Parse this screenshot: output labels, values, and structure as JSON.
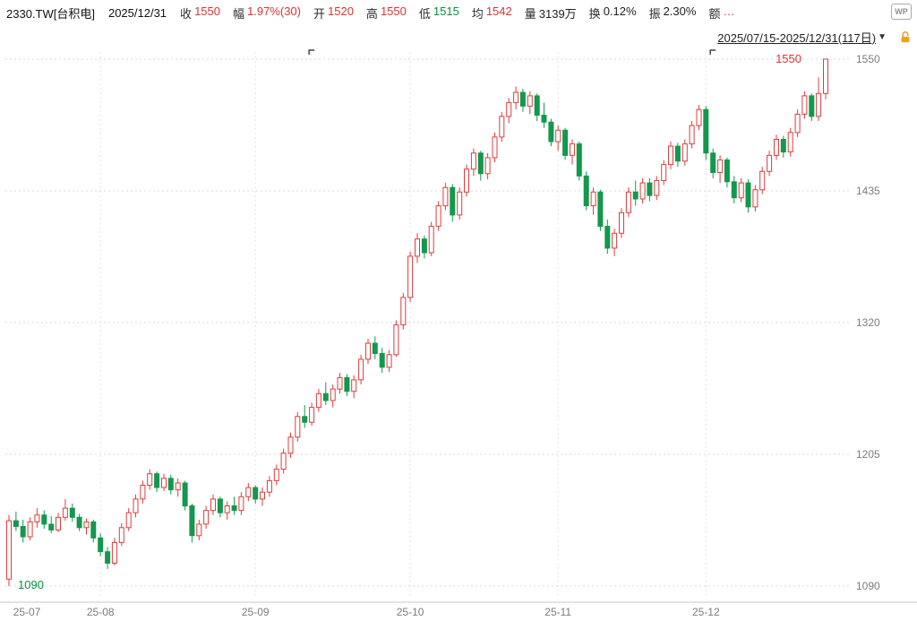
{
  "header": {
    "symbol": "2330.TW[台积电]",
    "date": "2025/12/31",
    "logo": "WP",
    "fields": [
      {
        "key": "close",
        "label": "收",
        "value": "1550",
        "color": "red"
      },
      {
        "key": "change",
        "label": "幅",
        "value": "1.97%(30)",
        "color": "red"
      },
      {
        "key": "open",
        "label": "开",
        "value": "1520",
        "color": "red"
      },
      {
        "key": "high",
        "label": "高",
        "value": "1550",
        "color": "red"
      },
      {
        "key": "low",
        "label": "低",
        "value": "1515",
        "color": "green"
      },
      {
        "key": "avg",
        "label": "均",
        "value": "1542",
        "color": "red"
      },
      {
        "key": "volume",
        "label": "量",
        "value": "3139万",
        "color": "black"
      },
      {
        "key": "turnover",
        "label": "换",
        "value": "0.12%",
        "color": "black"
      },
      {
        "key": "amplitude",
        "label": "振",
        "value": "2.30%",
        "color": "black"
      },
      {
        "key": "amount",
        "label": "额",
        "value": "…",
        "color": "red"
      }
    ]
  },
  "range_bar": {
    "range_text": "2025/07/15-2025/12/31(117日)",
    "dropdown_icon": "▼",
    "lock_color": "#f0a020"
  },
  "chart_data": {
    "type": "candlestick",
    "title": "2330.TW 台积电 日K线 2025/07/15-2025/12/31",
    "y_ticks": [
      1550,
      1435,
      1320,
      1205,
      1090
    ],
    "ylim": [
      1079,
      1559
    ],
    "x_labels": [
      "25-07",
      "25-08",
      "25-09",
      "25-10",
      "25-11",
      "25-12"
    ],
    "month_start_indices": [
      0,
      13,
      35,
      57,
      78,
      99
    ],
    "high_annotation": {
      "text": "1550",
      "day": 116,
      "value": 1550
    },
    "low_annotation": {
      "text": "1090",
      "day": 0,
      "value": 1090
    },
    "event_marker_days": [
      43,
      100
    ],
    "colors": {
      "up": "#e23b3b",
      "down": "#13984d",
      "grid": "#d8d8d8",
      "axis_text": "#7c7c7c"
    },
    "candles": [
      [
        1096,
        1152,
        1090,
        1147
      ],
      [
        1147,
        1155,
        1138,
        1142
      ],
      [
        1142,
        1148,
        1128,
        1133
      ],
      [
        1133,
        1150,
        1130,
        1146
      ],
      [
        1146,
        1158,
        1141,
        1152
      ],
      [
        1152,
        1156,
        1140,
        1144
      ],
      [
        1144,
        1151,
        1136,
        1139
      ],
      [
        1139,
        1154,
        1137,
        1150
      ],
      [
        1150,
        1166,
        1147,
        1158
      ],
      [
        1158,
        1162,
        1146,
        1150
      ],
      [
        1150,
        1153,
        1138,
        1141
      ],
      [
        1141,
        1149,
        1135,
        1146
      ],
      [
        1146,
        1148,
        1128,
        1132
      ],
      [
        1132,
        1136,
        1116,
        1120
      ],
      [
        1120,
        1124,
        1105,
        1110
      ],
      [
        1110,
        1132,
        1108,
        1128
      ],
      [
        1128,
        1145,
        1125,
        1141
      ],
      [
        1141,
        1158,
        1138,
        1154
      ],
      [
        1154,
        1170,
        1150,
        1166
      ],
      [
        1166,
        1182,
        1162,
        1178
      ],
      [
        1178,
        1192,
        1174,
        1188
      ],
      [
        1188,
        1190,
        1172,
        1176
      ],
      [
        1176,
        1188,
        1173,
        1184
      ],
      [
        1184,
        1187,
        1170,
        1174
      ],
      [
        1174,
        1184,
        1168,
        1180
      ],
      [
        1180,
        1182,
        1156,
        1160
      ],
      [
        1160,
        1162,
        1128,
        1134
      ],
      [
        1134,
        1148,
        1130,
        1144
      ],
      [
        1144,
        1160,
        1140,
        1156
      ],
      [
        1156,
        1170,
        1152,
        1166
      ],
      [
        1166,
        1168,
        1150,
        1154
      ],
      [
        1154,
        1164,
        1148,
        1160
      ],
      [
        1160,
        1168,
        1152,
        1156
      ],
      [
        1156,
        1172,
        1152,
        1168
      ],
      [
        1168,
        1180,
        1164,
        1176
      ],
      [
        1176,
        1178,
        1162,
        1166
      ],
      [
        1166,
        1176,
        1160,
        1172
      ],
      [
        1172,
        1186,
        1168,
        1182
      ],
      [
        1182,
        1196,
        1178,
        1192
      ],
      [
        1192,
        1210,
        1188,
        1206
      ],
      [
        1206,
        1224,
        1202,
        1220
      ],
      [
        1220,
        1242,
        1216,
        1238
      ],
      [
        1238,
        1248,
        1228,
        1233
      ],
      [
        1233,
        1250,
        1230,
        1246
      ],
      [
        1246,
        1262,
        1242,
        1258
      ],
      [
        1258,
        1268,
        1248,
        1252
      ],
      [
        1252,
        1266,
        1246,
        1262
      ],
      [
        1262,
        1276,
        1258,
        1272
      ],
      [
        1272,
        1275,
        1256,
        1260
      ],
      [
        1260,
        1274,
        1254,
        1270
      ],
      [
        1270,
        1292,
        1266,
        1288
      ],
      [
        1288,
        1306,
        1284,
        1302
      ],
      [
        1302,
        1308,
        1288,
        1293
      ],
      [
        1293,
        1298,
        1276,
        1281
      ],
      [
        1281,
        1296,
        1277,
        1292
      ],
      [
        1292,
        1322,
        1290,
        1318
      ],
      [
        1318,
        1346,
        1314,
        1342
      ],
      [
        1342,
        1382,
        1338,
        1378
      ],
      [
        1378,
        1398,
        1372,
        1393
      ],
      [
        1393,
        1396,
        1376,
        1381
      ],
      [
        1381,
        1408,
        1378,
        1404
      ],
      [
        1404,
        1426,
        1400,
        1422
      ],
      [
        1422,
        1442,
        1418,
        1438
      ],
      [
        1438,
        1441,
        1408,
        1414
      ],
      [
        1414,
        1438,
        1410,
        1434
      ],
      [
        1434,
        1458,
        1430,
        1454
      ],
      [
        1454,
        1472,
        1448,
        1468
      ],
      [
        1468,
        1470,
        1444,
        1450
      ],
      [
        1450,
        1468,
        1445,
        1464
      ],
      [
        1464,
        1486,
        1460,
        1482
      ],
      [
        1482,
        1504,
        1478,
        1500
      ],
      [
        1500,
        1516,
        1494,
        1512
      ],
      [
        1512,
        1526,
        1506,
        1521
      ],
      [
        1521,
        1524,
        1504,
        1509
      ],
      [
        1509,
        1522,
        1502,
        1518
      ],
      [
        1518,
        1520,
        1496,
        1501
      ],
      [
        1501,
        1512,
        1490,
        1495
      ],
      [
        1495,
        1498,
        1474,
        1478
      ],
      [
        1478,
        1492,
        1470,
        1488
      ],
      [
        1488,
        1490,
        1462,
        1466
      ],
      [
        1466,
        1480,
        1458,
        1476
      ],
      [
        1476,
        1478,
        1444,
        1448
      ],
      [
        1448,
        1452,
        1418,
        1422
      ],
      [
        1422,
        1438,
        1414,
        1434
      ],
      [
        1434,
        1436,
        1400,
        1404
      ],
      [
        1404,
        1410,
        1380,
        1385
      ],
      [
        1385,
        1402,
        1378,
        1398
      ],
      [
        1398,
        1420,
        1394,
        1416
      ],
      [
        1416,
        1438,
        1412,
        1434
      ],
      [
        1434,
        1444,
        1422,
        1428
      ],
      [
        1428,
        1446,
        1424,
        1442
      ],
      [
        1442,
        1446,
        1426,
        1431
      ],
      [
        1431,
        1448,
        1427,
        1444
      ],
      [
        1444,
        1462,
        1440,
        1458
      ],
      [
        1458,
        1478,
        1454,
        1474
      ],
      [
        1474,
        1477,
        1456,
        1461
      ],
      [
        1461,
        1480,
        1457,
        1476
      ],
      [
        1476,
        1496,
        1472,
        1492
      ],
      [
        1492,
        1510,
        1488,
        1506
      ],
      [
        1506,
        1509,
        1462,
        1468
      ],
      [
        1468,
        1472,
        1446,
        1451
      ],
      [
        1451,
        1466,
        1442,
        1462
      ],
      [
        1462,
        1464,
        1438,
        1443
      ],
      [
        1443,
        1448,
        1424,
        1429
      ],
      [
        1429,
        1446,
        1425,
        1442
      ],
      [
        1442,
        1445,
        1416,
        1421
      ],
      [
        1421,
        1440,
        1417,
        1436
      ],
      [
        1436,
        1456,
        1432,
        1452
      ],
      [
        1452,
        1470,
        1448,
        1466
      ],
      [
        1466,
        1484,
        1462,
        1480
      ],
      [
        1480,
        1483,
        1464,
        1469
      ],
      [
        1469,
        1490,
        1465,
        1486
      ],
      [
        1486,
        1506,
        1482,
        1502
      ],
      [
        1502,
        1522,
        1498,
        1518
      ],
      [
        1518,
        1520,
        1496,
        1500
      ],
      [
        1500,
        1534,
        1496,
        1520
      ],
      [
        1520,
        1550,
        1515,
        1550
      ]
    ]
  }
}
